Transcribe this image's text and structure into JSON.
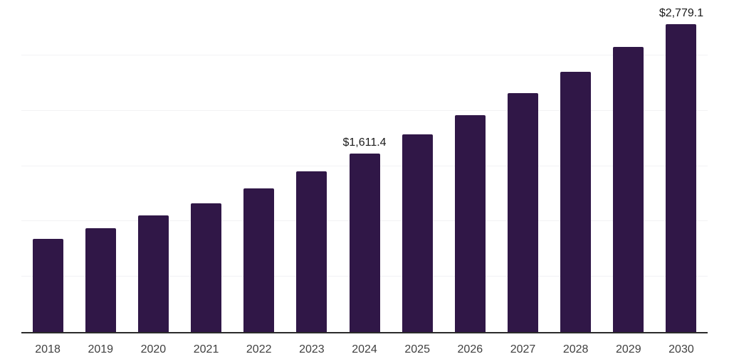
{
  "chart_data": {
    "type": "bar",
    "title": "",
    "xlabel": "",
    "ylabel": "",
    "categories": [
      "2018",
      "2019",
      "2020",
      "2021",
      "2022",
      "2023",
      "2024",
      "2025",
      "2026",
      "2027",
      "2028",
      "2029",
      "2030"
    ],
    "values": [
      839,
      939,
      1054,
      1166,
      1295,
      1452,
      1611.4,
      1787,
      1962,
      2156,
      2351,
      2578,
      2779.1
    ],
    "data_labels": {
      "2024": "$1,611.4",
      "2030": "$2,779.1"
    },
    "ylim": [
      0,
      3000
    ],
    "gridline_step": 500,
    "grid": true,
    "legend": "none",
    "colors": {
      "bar": "#301747",
      "gridline": "#f2f2f4",
      "axis": "#2b2b2b",
      "value_label": "#1a1a1a",
      "tick_label": "#404040",
      "background": "#ffffff"
    }
  }
}
